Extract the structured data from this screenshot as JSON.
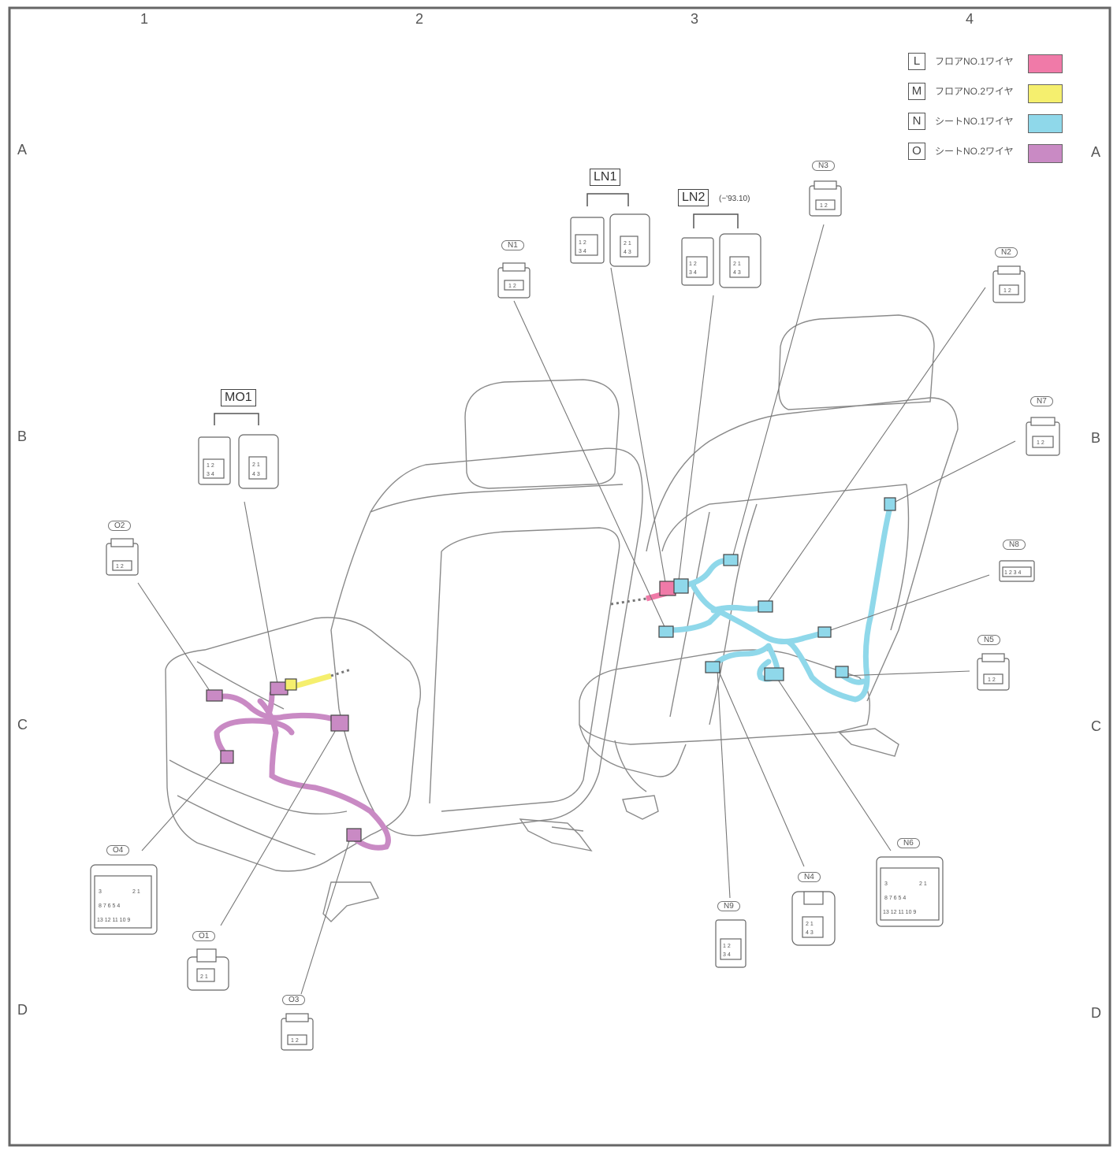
{
  "frame": {
    "columns": [
      "1",
      "2",
      "3",
      "4"
    ],
    "rows": [
      "A",
      "B",
      "C",
      "D"
    ]
  },
  "legend": [
    {
      "key": "L",
      "label": "フロアNO.1ワイヤ",
      "color": "#f07aa8"
    },
    {
      "key": "M",
      "label": "フロアNO.2ワイヤ",
      "color": "#f5ef6e"
    },
    {
      "key": "N",
      "label": "シートNO.1ワイヤ",
      "color": "#8fd8ea"
    },
    {
      "key": "O",
      "label": "シートNO.2ワイヤ",
      "color": "#c98ac4"
    }
  ],
  "groups": {
    "ln1": {
      "label": "LN1"
    },
    "ln2": {
      "label": "LN2",
      "note": "(~'93.10)"
    },
    "mo1": {
      "label": "MO1"
    }
  },
  "connectors": {
    "n1": "N1",
    "n2": "N2",
    "n3": "N3",
    "n4": "N4",
    "n5": "N5",
    "n6": "N6",
    "n7": "N7",
    "n8": "N8",
    "n9": "N9",
    "o1": "O1",
    "o2": "O2",
    "o3": "O3",
    "o4": "O4"
  },
  "pins": {
    "p12": "1 2",
    "p21": "2 1",
    "p34": "3 4",
    "p43": "4 3",
    "p1234": "1 2 3 4",
    "p_row2": "8 7 6 5 4",
    "p_row3": "13 12 11 10 9",
    "p3": "3"
  },
  "wire_colors": {
    "L": "#f07aa8",
    "M": "#f5ef6e",
    "N": "#8fd8ea",
    "O": "#c98ac4"
  }
}
